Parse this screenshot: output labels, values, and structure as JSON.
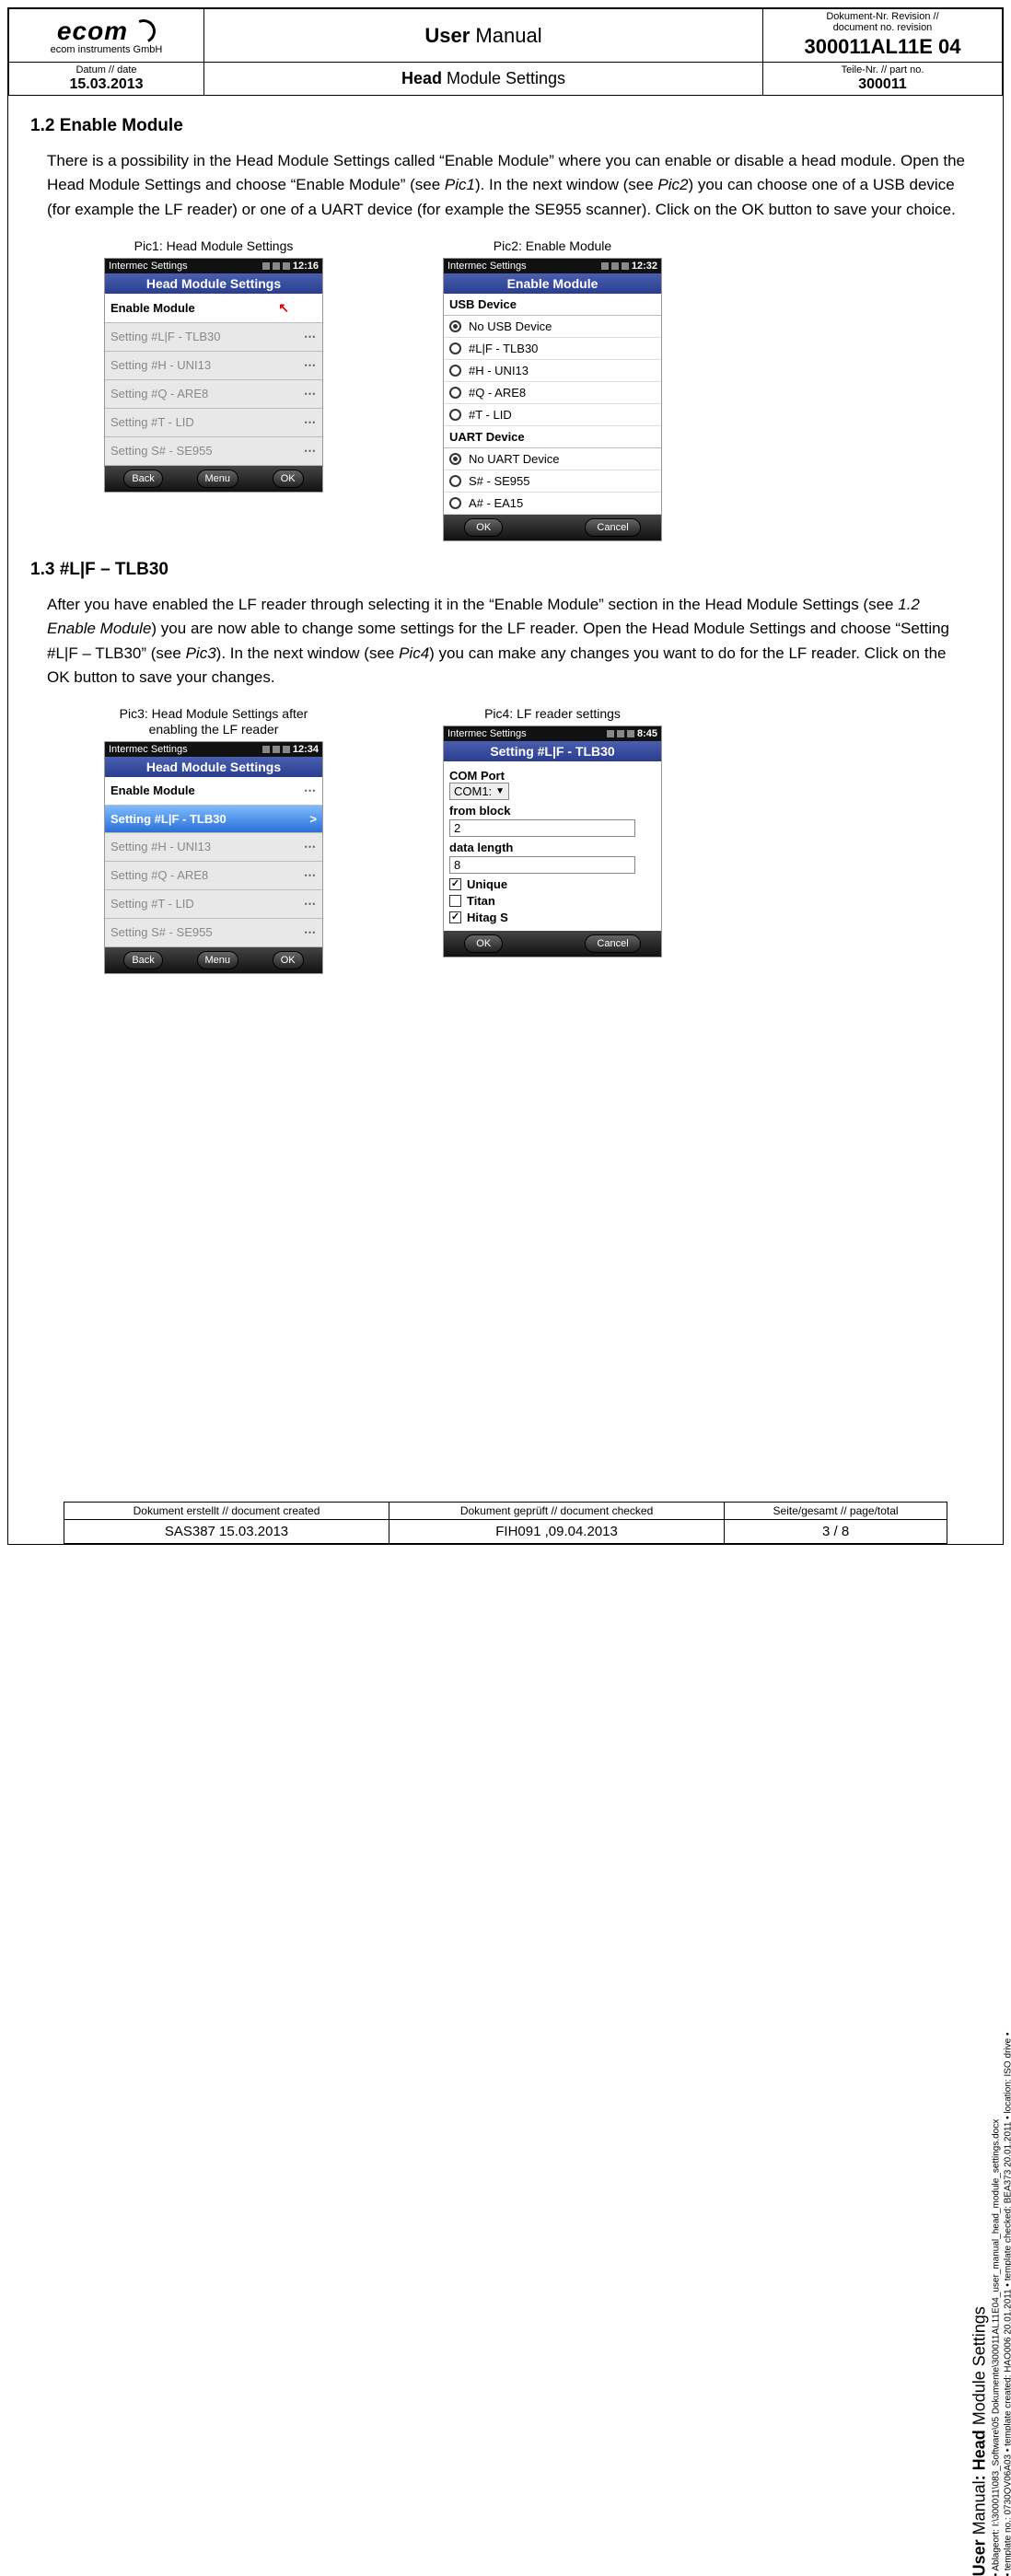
{
  "header": {
    "logo_text": "ecom",
    "logo_sub": "ecom instruments GmbH",
    "title_main_bold": "User",
    "title_main_rest": " Manual",
    "docno_label": "Dokument-Nr. Revision //\ndocument no. revision",
    "docno_value": "300011AL11E 04",
    "date_label": "Datum // date",
    "date_value": "15.03.2013",
    "subtitle_bold": "Head",
    "subtitle_rest": " Module Settings",
    "partno_label": "Teile-Nr. // part no.",
    "partno_value": "300011"
  },
  "sections": {
    "s12_heading": "1.2 Enable Module",
    "s12_para": "There is a possibility in the Head Module Settings called “Enable Module” where you can enable or disable a head module. Open the Head Module Settings and choose “Enable Module” (see ",
    "s12_para_i1": "Pic1",
    "s12_para_2": "). In the next window (see ",
    "s12_para_i2": "Pic2",
    "s12_para_3": ") you can choose one of a USB device (for example the LF reader) or one of a UART device (for example the SE955 scanner). Click on the OK button to save your choice.",
    "s13_heading": "1.3 #L|F – TLB30",
    "s13_para_1": "After you have enabled the LF reader through selecting it in the “Enable Module” section in the Head Module Settings (see ",
    "s13_para_i1": "1.2 Enable Module",
    "s13_para_2": ") you are now able to change some settings for the LF reader. Open the Head Module Settings and choose “Setting #L|F – TLB30” (see ",
    "s13_para_i2": "Pic3",
    "s13_para_3": "). In the next window (see ",
    "s13_para_i3": "Pic4",
    "s13_para_4": ") you can make any changes you want to do for the LF reader. Click on the OK button to save your changes."
  },
  "captions": {
    "pic1": "Pic1: Head Module Settings",
    "pic2": "Pic2: Enable Module",
    "pic3": "Pic3: Head Module Settings after enabling the LF reader",
    "pic4": "Pic4: LF reader settings"
  },
  "pic1": {
    "status_app": "Intermec Settings",
    "time": "12:16",
    "title": "Head Module Settings",
    "rows": [
      {
        "label": "Enable Module",
        "active": true,
        "arrow_red": true
      },
      {
        "label": "Setting #L|F - TLB30"
      },
      {
        "label": "Setting   #H - UNI13"
      },
      {
        "label": "Setting   #Q - ARE8"
      },
      {
        "label": "Setting   #T  - LID"
      },
      {
        "label": "Setting   S# - SE955"
      }
    ],
    "btns": [
      "Back",
      "Menu",
      "OK"
    ]
  },
  "pic2": {
    "status_app": "Intermec Settings",
    "time": "12:32",
    "title": "Enable Module",
    "grp1": "USB Device",
    "usb": [
      {
        "label": "No USB Device",
        "on": true
      },
      {
        "label": "#L|F - TLB30"
      },
      {
        "label": "  #H - UNI13"
      },
      {
        "label": "  #Q - ARE8"
      },
      {
        "label": "  #T  - LID"
      }
    ],
    "grp2": "UART Device",
    "uart": [
      {
        "label": "No UART Device",
        "on": true
      },
      {
        "label": "S# - SE955"
      },
      {
        "label": "A# - EA15"
      }
    ],
    "btns": [
      "OK",
      "Cancel"
    ]
  },
  "pic3": {
    "status_app": "Intermec Settings",
    "time": "12:34",
    "title": "Head Module Settings",
    "rows": [
      {
        "label": "Enable Module",
        "active": true
      },
      {
        "label": "Setting #L|F - TLB30",
        "selected": true
      },
      {
        "label": "Setting   #H - UNI13"
      },
      {
        "label": "Setting   #Q - ARE8"
      },
      {
        "label": "Setting   #T  - LID"
      },
      {
        "label": "Setting   S# - SE955"
      }
    ],
    "btns": [
      "Back",
      "Menu",
      "OK"
    ]
  },
  "pic4": {
    "status_app": "Intermec Settings",
    "time": "8:45",
    "title": "Setting #L|F - TLB30",
    "com_lbl": "COM Port",
    "com_val": "COM1:",
    "fb_lbl": "from block",
    "fb_val": "2",
    "dl_lbl": "data length",
    "dl_val": "8",
    "chk": [
      {
        "label": "Unique",
        "on": true
      },
      {
        "label": "Titan",
        "on": false
      },
      {
        "label": "Hitag S",
        "on": true
      }
    ],
    "btns": [
      "OK",
      "Cancel"
    ]
  },
  "footer": {
    "c1_lbl": "Dokument erstellt // document created",
    "c1_val": "SAS387 15.03.2013",
    "c2_lbl": "Dokument geprüft // document checked",
    "c2_val": "FIH091 ,09.04.2013",
    "c3_lbl": "Seite/gesamt // page/total",
    "c3_val": "3 / 8"
  },
  "side": {
    "line1_a": "User ",
    "line1_b": "Manual",
    "line1_c": ": Head",
    "line1_d": " Module Settings",
    "line2": "• Ablageort: I:\\300011\\083_Software\\05 Dokumente\\300011AL11E04_user_manual_head_module_settings.docx",
    "line3": "• template no.: 0730QV06A03 • template created: HAO006 20.01.2011 • template checked: BEA373 20.01.2011 • location: ISO drive •"
  }
}
